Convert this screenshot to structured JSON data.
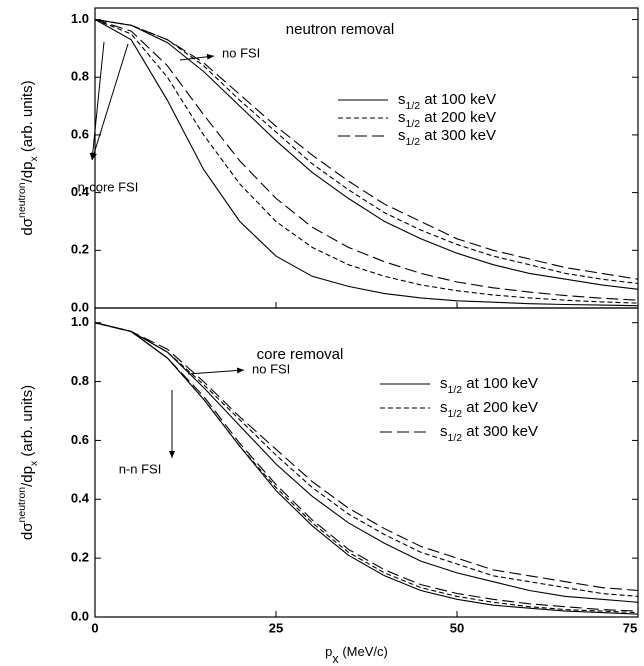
{
  "chart_data": [
    {
      "type": "line",
      "title": "neutron removal",
      "x": [
        0,
        5,
        10,
        15,
        20,
        25,
        30,
        35,
        40,
        45,
        50,
        55,
        60,
        65,
        70,
        75
      ],
      "xlim": [
        0,
        75
      ],
      "xticks": [
        0,
        25,
        50,
        75
      ],
      "ylim": [
        0,
        1.04
      ],
      "yticks": [
        {
          "value": 0,
          "label": "0.0"
        },
        {
          "value": 0.2,
          "label": "0.2"
        },
        {
          "value": 0.4,
          "label": "0.4"
        },
        {
          "value": 0.6,
          "label": "0.6"
        },
        {
          "value": 0.8,
          "label": "0.8"
        },
        {
          "value": 1,
          "label": "1.0"
        }
      ],
      "ylabel": [
        {
          "text": "dσ"
        },
        {
          "text": "neutron",
          "script": "sup"
        },
        {
          "text": "/dp"
        },
        {
          "text": "x",
          "script": "sub"
        },
        {
          "text": " (arb. units)"
        }
      ],
      "annotations": {
        "no_fsi": "no FSI",
        "fsi": "n-core FSI"
      },
      "series": [
        {
          "name": [
            {
              "text": "s"
            },
            {
              "text": "1/2",
              "script": "sub"
            },
            {
              "text": " at 100 keV"
            }
          ],
          "color": "#000000",
          "dash": "solid",
          "values": [
            1.0,
            0.98,
            0.92,
            0.82,
            0.7,
            0.58,
            0.47,
            0.38,
            0.3,
            0.24,
            0.19,
            0.15,
            0.12,
            0.1,
            0.08,
            0.065
          ],
          "fsi_values": [
            1.0,
            0.93,
            0.72,
            0.48,
            0.3,
            0.18,
            0.11,
            0.075,
            0.05,
            0.035,
            0.025,
            0.02,
            0.015,
            0.012,
            0.01,
            0.008
          ]
        },
        {
          "name": [
            {
              "text": "s"
            },
            {
              "text": "1/2",
              "script": "sub"
            },
            {
              "text": " at 200 keV"
            }
          ],
          "color": "#000000",
          "dash": "short",
          "values": [
            1.0,
            0.98,
            0.93,
            0.84,
            0.72,
            0.61,
            0.5,
            0.41,
            0.33,
            0.27,
            0.22,
            0.18,
            0.15,
            0.12,
            0.1,
            0.085
          ],
          "fsi_values": [
            1.0,
            0.95,
            0.8,
            0.6,
            0.43,
            0.3,
            0.21,
            0.15,
            0.11,
            0.08,
            0.06,
            0.045,
            0.035,
            0.027,
            0.021,
            0.017
          ]
        },
        {
          "name": [
            {
              "text": "s"
            },
            {
              "text": "1/2",
              "script": "sub"
            },
            {
              "text": " at 300 keV"
            }
          ],
          "color": "#000000",
          "dash": "long",
          "values": [
            1.0,
            0.98,
            0.93,
            0.85,
            0.74,
            0.63,
            0.53,
            0.44,
            0.36,
            0.3,
            0.24,
            0.2,
            0.17,
            0.14,
            0.12,
            0.1
          ],
          "fsi_values": [
            1.0,
            0.96,
            0.84,
            0.67,
            0.51,
            0.38,
            0.28,
            0.21,
            0.16,
            0.12,
            0.09,
            0.07,
            0.055,
            0.043,
            0.034,
            0.027
          ]
        }
      ]
    },
    {
      "type": "line",
      "title": "core removal",
      "x": [
        0,
        5,
        10,
        15,
        20,
        25,
        30,
        35,
        40,
        45,
        50,
        55,
        60,
        65,
        70,
        75
      ],
      "xlim": [
        0,
        75
      ],
      "xticks": [
        0,
        25,
        50,
        75
      ],
      "xlabel": [
        {
          "text": "p"
        },
        {
          "text": "x",
          "script": "sub"
        },
        {
          "text": " (MeV/c)"
        }
      ],
      "ylim": [
        0,
        1.05
      ],
      "yticks": [
        {
          "value": 0,
          "label": "0.0"
        },
        {
          "value": 0.2,
          "label": "0.2"
        },
        {
          "value": 0.4,
          "label": "0.4"
        },
        {
          "value": 0.6,
          "label": "0.6"
        },
        {
          "value": 0.8,
          "label": "0.8"
        },
        {
          "value": 1,
          "label": "1.0"
        }
      ],
      "ylabel": [
        {
          "text": "dσ"
        },
        {
          "text": "neutron",
          "script": "sup"
        },
        {
          "text": "/dp"
        },
        {
          "text": "x",
          "script": "sub"
        },
        {
          "text": " (arb. units)"
        }
      ],
      "annotations": {
        "no_fsi": "no FSI",
        "fsi": "n-n FSI"
      },
      "series": [
        {
          "name": [
            {
              "text": "s"
            },
            {
              "text": "1/2",
              "script": "sub"
            },
            {
              "text": " at 100 keV"
            }
          ],
          "color": "#000000",
          "dash": "solid",
          "values": [
            1.0,
            0.97,
            0.9,
            0.78,
            0.65,
            0.52,
            0.41,
            0.32,
            0.25,
            0.19,
            0.15,
            0.12,
            0.09,
            0.07,
            0.06,
            0.05
          ],
          "fsi_values": [
            1.0,
            0.97,
            0.88,
            0.74,
            0.58,
            0.43,
            0.31,
            0.21,
            0.14,
            0.09,
            0.06,
            0.04,
            0.03,
            0.02,
            0.015,
            0.01
          ]
        },
        {
          "name": [
            {
              "text": "s"
            },
            {
              "text": "1/2",
              "script": "sub"
            },
            {
              "text": " at 200 keV"
            }
          ],
          "color": "#000000",
          "dash": "short",
          "values": [
            1.0,
            0.97,
            0.9,
            0.79,
            0.67,
            0.55,
            0.44,
            0.35,
            0.28,
            0.22,
            0.18,
            0.14,
            0.12,
            0.1,
            0.08,
            0.07
          ],
          "fsi_values": [
            1.0,
            0.97,
            0.88,
            0.74,
            0.58,
            0.44,
            0.32,
            0.22,
            0.15,
            0.1,
            0.07,
            0.05,
            0.035,
            0.025,
            0.02,
            0.015
          ]
        },
        {
          "name": [
            {
              "text": "s"
            },
            {
              "text": "1/2",
              "script": "sub"
            },
            {
              "text": " at 300 keV"
            }
          ],
          "color": "#000000",
          "dash": "long",
          "values": [
            1.0,
            0.97,
            0.91,
            0.8,
            0.68,
            0.57,
            0.46,
            0.37,
            0.3,
            0.24,
            0.2,
            0.16,
            0.14,
            0.12,
            0.1,
            0.09
          ],
          "fsi_values": [
            1.0,
            0.97,
            0.88,
            0.75,
            0.59,
            0.45,
            0.33,
            0.23,
            0.16,
            0.11,
            0.08,
            0.06,
            0.045,
            0.035,
            0.025,
            0.02
          ]
        }
      ]
    }
  ]
}
